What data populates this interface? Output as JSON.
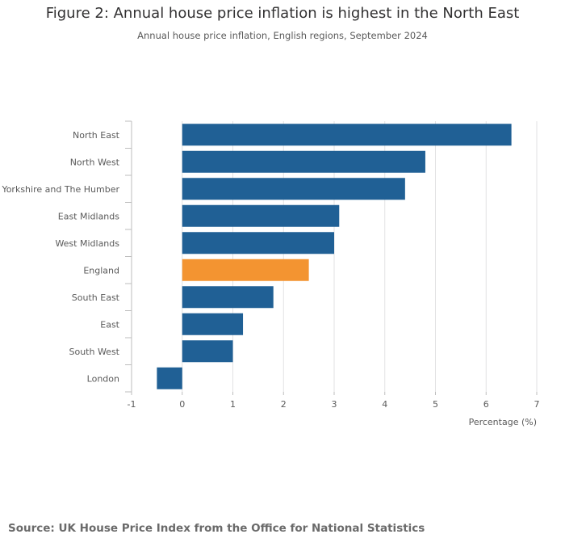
{
  "header": {
    "title": "Figure 2: Annual house price inflation is highest in the North East",
    "subtitle": "Annual house price inflation, English regions, September 2024"
  },
  "footer": {
    "source": "Source: UK House Price Index from the Office for National Statistics"
  },
  "chart_data": {
    "type": "bar",
    "orientation": "horizontal",
    "title": "Figure 2: Annual house price inflation is highest in the North East",
    "subtitle": "Annual house price inflation, English regions, September 2024",
    "categories": [
      "North East",
      "North West",
      "Yorkshire and The Humber",
      "East Midlands",
      "West Midlands",
      "England",
      "South East",
      "East",
      "South West",
      "London"
    ],
    "values": [
      6.5,
      4.8,
      4.4,
      3.1,
      3.0,
      2.5,
      1.8,
      1.2,
      1.0,
      -0.5
    ],
    "highlight_category": "England",
    "colors": {
      "default": "#206095",
      "highlight": "#f39431",
      "grid": "#e2e2e3",
      "axis": "#bebebe"
    },
    "xlabel": "Percentage (%)",
    "ylabel": "",
    "xlim": [
      -1,
      7
    ],
    "xticks": [
      -1,
      0,
      1,
      2,
      3,
      4,
      5,
      6,
      7
    ],
    "grid": true,
    "legend": "none"
  }
}
